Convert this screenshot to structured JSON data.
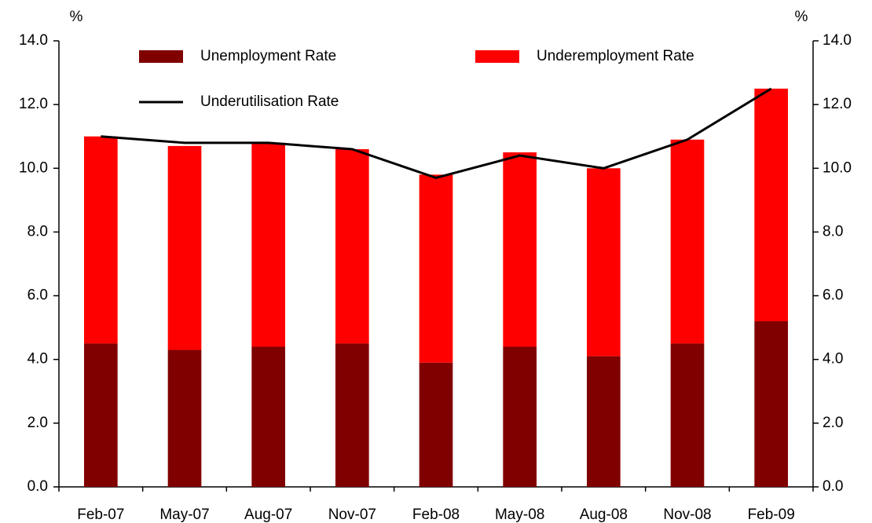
{
  "chart_data": {
    "type": "bar",
    "stacked": true,
    "y_label": "%",
    "y2_label": "%",
    "categories": [
      "Feb-07",
      "May-07",
      "Aug-07",
      "Nov-07",
      "Feb-08",
      "May-08",
      "Aug-08",
      "Nov-08",
      "Feb-09"
    ],
    "series": [
      {
        "name": "Unemployment Rate",
        "color": "#800000",
        "values": [
          4.5,
          4.3,
          4.4,
          4.5,
          3.9,
          4.4,
          4.1,
          4.5,
          5.2
        ]
      },
      {
        "name": "Underemployment Rate",
        "color": "#ff0000",
        "values": [
          6.5,
          6.4,
          6.4,
          6.1,
          5.9,
          6.1,
          5.9,
          6.4,
          7.3
        ]
      },
      {
        "name": "Underutilisation Rate",
        "color": "#000000",
        "type": "line",
        "values": [
          11.0,
          10.8,
          10.8,
          10.6,
          9.7,
          10.4,
          10.0,
          10.9,
          12.5
        ]
      }
    ],
    "ylim": [
      0,
      14
    ],
    "yticks": [
      {
        "value": 0,
        "label": "0.0"
      },
      {
        "value": 2,
        "label": "2.0"
      },
      {
        "value": 4,
        "label": "4.0"
      },
      {
        "value": 6,
        "label": "6.0"
      },
      {
        "value": 8,
        "label": "8.0"
      },
      {
        "value": 10,
        "label": "10.0"
      },
      {
        "value": 12,
        "label": "12.0"
      },
      {
        "value": 14,
        "label": "14.0"
      }
    ],
    "y2lim": [
      0,
      14
    ],
    "y2ticks": [
      {
        "value": 0,
        "label": "0.0"
      },
      {
        "value": 2,
        "label": "2.0"
      },
      {
        "value": 4,
        "label": "4.0"
      },
      {
        "value": 6,
        "label": "6.0"
      },
      {
        "value": 8,
        "label": "8.0"
      },
      {
        "value": 10,
        "label": "10.0"
      },
      {
        "value": 12,
        "label": "12.0"
      },
      {
        "value": 14,
        "label": "14.0"
      }
    ],
    "grid": false
  }
}
